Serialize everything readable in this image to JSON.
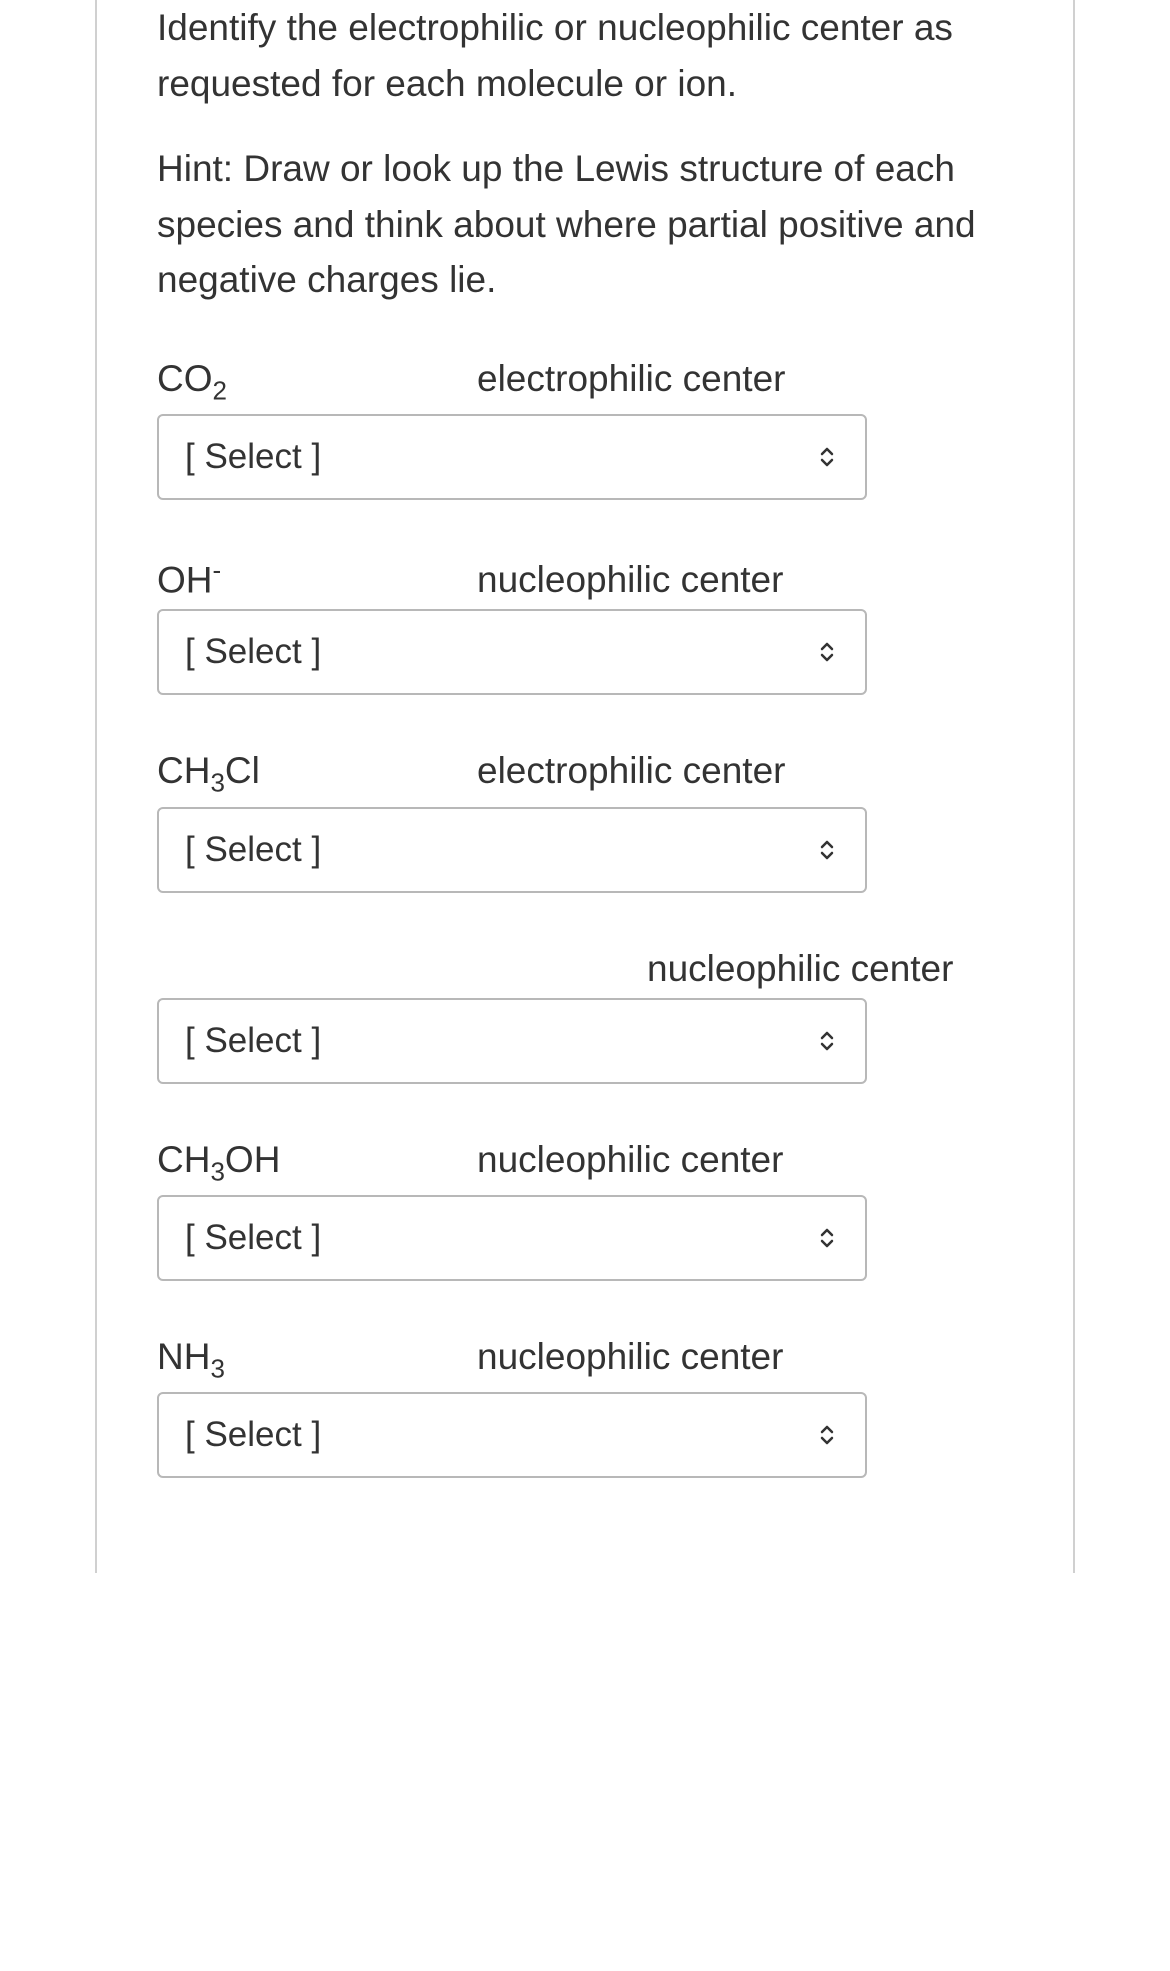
{
  "prompt": "Identify the electrophilic or nucleophilic center as requested for each molecule or ion.",
  "hint": "Hint: Draw or look up the Lewis structure of each species and think about where partial positive and negative charges lie.",
  "select_placeholder": "[ Select ]",
  "questions": [
    {
      "molecule_html": "CO<sub>2</sub>",
      "center": "electrophilic center"
    },
    {
      "molecule_html": "OH<sup>-</sup>",
      "center": "nucleophilic center"
    },
    {
      "molecule_html": "CH<sub>3</sub>Cl",
      "center": "electrophilic center"
    },
    {
      "molecule_html": "",
      "center": "nucleophilic center"
    },
    {
      "molecule_html": "CH<sub>3</sub>OH",
      "center": "nucleophilic center"
    },
    {
      "molecule_html": "NH<sub>3</sub>",
      "center": "nucleophilic center"
    }
  ],
  "colors": {
    "text": "#333333",
    "border": "#b8b8b8",
    "container_border": "#d0d0d0",
    "background": "#ffffff"
  }
}
